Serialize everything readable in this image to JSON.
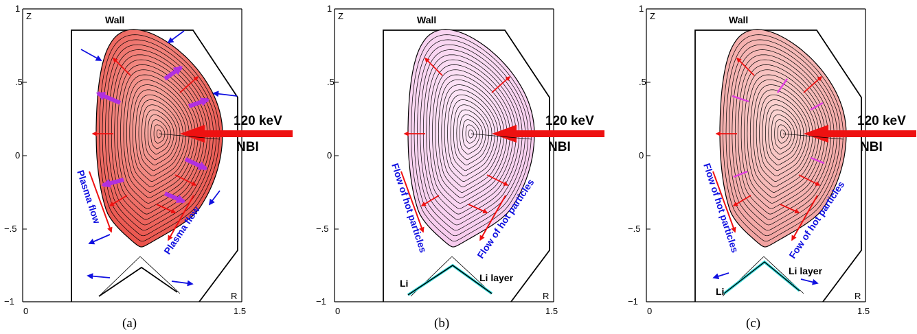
{
  "panels": [
    {
      "caption": "(a)",
      "fill": "#e8423a",
      "fill_light": "#f9b4ad",
      "wall_label": "Wall",
      "beam_energy": "120 keV",
      "beam_label": "NBI",
      "flow_left": "Plasma flow",
      "flow_right": "Plasma flow",
      "li_label": "",
      "li_layer_label": ""
    },
    {
      "caption": "(b)",
      "fill": "#f6c6ec",
      "fill_light": "#fde9f8",
      "wall_label": "Wall",
      "beam_energy": "120 keV",
      "beam_label": "NBI",
      "flow_left": "Flow of hot particles",
      "flow_right": "Flow of hot particles",
      "li_label": "Li",
      "li_layer_label": "Li layer"
    },
    {
      "caption": "(c)",
      "fill": "#f19a98",
      "fill_light": "#fbd5d3",
      "wall_label": "Wall",
      "beam_energy": "120 keV",
      "beam_label": "NBI",
      "flow_left": "Flow of hot particles",
      "flow_right": "Fow of hot particles",
      "li_label": "Li",
      "li_layer_label": "Li layer"
    }
  ],
  "axes": {
    "x_label": "R",
    "y_label": "Z",
    "x_ticks": [
      "0",
      "1.5"
    ],
    "y_ticks": [
      "1",
      ".5",
      "0",
      "−.5",
      "−1"
    ]
  },
  "colors": {
    "red_arrow": "#ee1111",
    "blue_arrow": "#1010e0",
    "magenta_arrow": "#b030e0",
    "li_layer": "#33dddd"
  }
}
